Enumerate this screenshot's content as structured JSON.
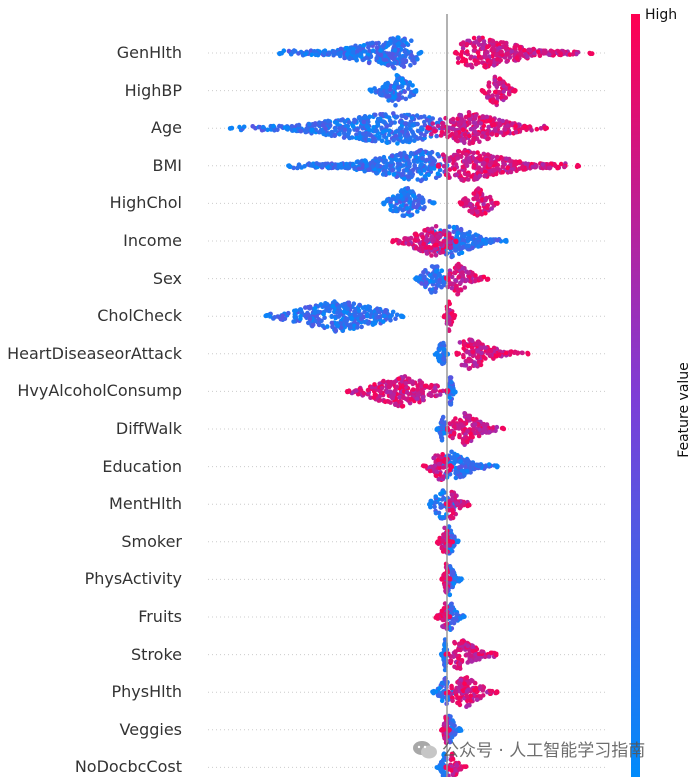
{
  "chart_data": {
    "type": "beeswarm",
    "features": [
      {
        "name": "GenHlth",
        "low": {
          "min": -1.85,
          "max": -0.3,
          "mode": -0.55
        },
        "high": {
          "min": 0.1,
          "max": 1.6,
          "mode": 0.35
        }
      },
      {
        "name": "HighBP",
        "low": {
          "min": -0.85,
          "max": -0.35,
          "mode": -0.55
        },
        "high": {
          "min": 0.4,
          "max": 0.75,
          "mode": 0.55
        }
      },
      {
        "name": "Age",
        "low": {
          "min": -2.4,
          "max": 0.0,
          "mode": -0.6
        },
        "high": {
          "min": -0.2,
          "max": 1.1,
          "mode": 0.25
        }
      },
      {
        "name": "BMI",
        "low": {
          "min": -1.75,
          "max": 0.0,
          "mode": -0.3
        },
        "high": {
          "min": -0.1,
          "max": 1.45,
          "mode": 0.2
        }
      },
      {
        "name": "HighChol",
        "low": {
          "min": -0.7,
          "max": -0.15,
          "mode": -0.45
        },
        "high": {
          "min": 0.15,
          "max": 0.55,
          "mode": 0.35
        }
      },
      {
        "name": "Income",
        "low": {
          "min": -0.2,
          "max": 0.65,
          "mode": 0.05
        },
        "high": {
          "min": -0.6,
          "max": 0.1,
          "mode": -0.15
        }
      },
      {
        "name": "Sex",
        "low": {
          "min": -0.35,
          "max": 0.0,
          "mode": -0.15
        },
        "high": {
          "min": 0.0,
          "max": 0.45,
          "mode": 0.12
        }
      },
      {
        "name": "CholCheck",
        "low": {
          "min": -2.0,
          "max": -0.5,
          "mode": -1.2
        },
        "high": {
          "min": -0.02,
          "max": 0.08,
          "mode": 0.02
        }
      },
      {
        "name": "HeartDiseaseorAttack",
        "low": {
          "min": -0.12,
          "max": 0.0,
          "mode": -0.05
        },
        "high": {
          "min": 0.12,
          "max": 0.9,
          "mode": 0.25
        }
      },
      {
        "name": "HvyAlcoholConsump",
        "low": {
          "min": 0.0,
          "max": 0.08,
          "mode": 0.04
        },
        "high": {
          "min": -1.1,
          "max": 0.0,
          "mode": -0.5
        }
      },
      {
        "name": "DiffWalk",
        "low": {
          "min": -0.1,
          "max": 0.0,
          "mode": -0.04
        },
        "high": {
          "min": 0.0,
          "max": 0.62,
          "mode": 0.2
        }
      },
      {
        "name": "Education",
        "low": {
          "min": -0.05,
          "max": 0.55,
          "mode": 0.05
        },
        "high": {
          "min": -0.25,
          "max": 0.05,
          "mode": -0.08
        }
      },
      {
        "name": "MentHlth",
        "low": {
          "min": -0.2,
          "max": 0.1,
          "mode": -0.05
        },
        "high": {
          "min": 0.0,
          "max": 0.25,
          "mode": 0.05
        }
      },
      {
        "name": "Smoker",
        "low": {
          "min": -0.05,
          "max": 0.12,
          "mode": 0.02
        },
        "high": {
          "min": -0.1,
          "max": 0.05,
          "mode": -0.02
        }
      },
      {
        "name": "PhysActivity",
        "low": {
          "min": 0.0,
          "max": 0.15,
          "mode": 0.03
        },
        "high": {
          "min": -0.05,
          "max": 0.02,
          "mode": -0.01
        }
      },
      {
        "name": "Fruits",
        "low": {
          "min": 0.0,
          "max": 0.18,
          "mode": 0.04
        },
        "high": {
          "min": -0.12,
          "max": 0.02,
          "mode": -0.02
        }
      },
      {
        "name": "Stroke",
        "low": {
          "min": -0.05,
          "max": 0.0,
          "mode": -0.02
        },
        "high": {
          "min": 0.0,
          "max": 0.55,
          "mode": 0.15
        }
      },
      {
        "name": "PhysHlth",
        "low": {
          "min": -0.15,
          "max": 0.05,
          "mode": -0.02
        },
        "high": {
          "min": 0.0,
          "max": 0.55,
          "mode": 0.2
        }
      },
      {
        "name": "Veggies",
        "low": {
          "min": 0.0,
          "max": 0.15,
          "mode": 0.03
        },
        "high": {
          "min": -0.05,
          "max": 0.02,
          "mode": -0.01
        }
      },
      {
        "name": "NoDocbcCost",
        "low": {
          "min": -0.1,
          "max": 0.0,
          "mode": -0.03
        },
        "high": {
          "min": 0.0,
          "max": 0.2,
          "mode": 0.05
        }
      }
    ],
    "xlim": [
      -2.6,
      1.8
    ],
    "colorbar": {
      "label": "Feature value",
      "high_label": "High",
      "low_color": "#008bfb",
      "high_color": "#ff0051",
      "mid_color": "#7e3dd6"
    }
  },
  "watermark": {
    "text": "公众号 · 人工智能学习指南"
  }
}
